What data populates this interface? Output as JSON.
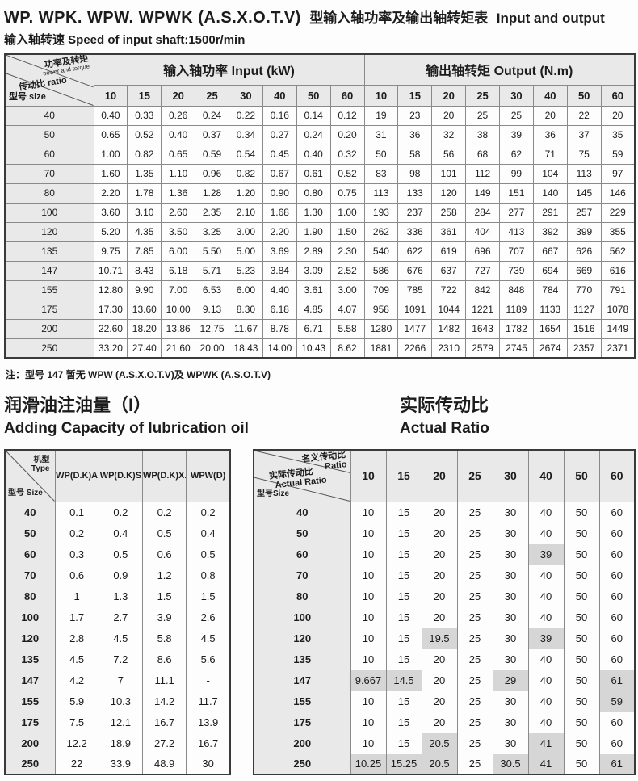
{
  "colors": {
    "header_bg": "#e9e9e9",
    "highlight": "#d6d6d6",
    "border_dark": "#3a3a3a",
    "text": "#1c1c1c"
  },
  "header": {
    "title_model": "WP. WPK. WPW. WPWK (A.S.X.O.T.V)",
    "title_cn": "型输入轴功率及输出轴转矩表",
    "title_en": "Input and output",
    "subtitle": "输入轴转速 Speed of input shaft:1500r/min",
    "note": "注：型号 147 暂无 WPW (A.S.X.O.T.V)及 WPWK (A.S.O.T.V)"
  },
  "main_table": {
    "corner": {
      "power_cn": "功率及转矩",
      "power_en": "power and torque",
      "ratio": "传动比 ratio",
      "size": "型号  size"
    },
    "input_header": "输入轴功率  Input (kW)",
    "output_header": "输出轴转矩  Output (N.m)",
    "ratios": [
      "10",
      "15",
      "20",
      "25",
      "30",
      "40",
      "50",
      "60"
    ],
    "rows": [
      {
        "size": "40",
        "input": [
          "0.40",
          "0.33",
          "0.26",
          "0.24",
          "0.22",
          "0.16",
          "0.14",
          "0.12"
        ],
        "output": [
          "19",
          "23",
          "20",
          "25",
          "25",
          "20",
          "22",
          "20"
        ]
      },
      {
        "size": "50",
        "input": [
          "0.65",
          "0.52",
          "0.40",
          "0.37",
          "0.34",
          "0.27",
          "0.24",
          "0.20"
        ],
        "output": [
          "31",
          "36",
          "32",
          "38",
          "39",
          "36",
          "37",
          "35"
        ]
      },
      {
        "size": "60",
        "input": [
          "1.00",
          "0.82",
          "0.65",
          "0.59",
          "0.54",
          "0.45",
          "0.40",
          "0.32"
        ],
        "output": [
          "50",
          "58",
          "56",
          "68",
          "62",
          "71",
          "75",
          "59"
        ]
      },
      {
        "size": "70",
        "input": [
          "1.60",
          "1.35",
          "1.10",
          "0.96",
          "0.82",
          "0.67",
          "0.61",
          "0.52"
        ],
        "output": [
          "83",
          "98",
          "101",
          "112",
          "99",
          "104",
          "113",
          "97"
        ]
      },
      {
        "size": "80",
        "input": [
          "2.20",
          "1.78",
          "1.36",
          "1.28",
          "1.20",
          "0.90",
          "0.80",
          "0.75"
        ],
        "output": [
          "113",
          "133",
          "120",
          "149",
          "151",
          "140",
          "145",
          "146"
        ]
      },
      {
        "size": "100",
        "input": [
          "3.60",
          "3.10",
          "2.60",
          "2.35",
          "2.10",
          "1.68",
          "1.30",
          "1.00"
        ],
        "output": [
          "193",
          "237",
          "258",
          "284",
          "277",
          "291",
          "257",
          "229"
        ]
      },
      {
        "size": "120",
        "input": [
          "5.20",
          "4.35",
          "3.50",
          "3.25",
          "3.00",
          "2.20",
          "1.90",
          "1.50"
        ],
        "output": [
          "262",
          "336",
          "361",
          "404",
          "413",
          "392",
          "399",
          "355"
        ]
      },
      {
        "size": "135",
        "input": [
          "9.75",
          "7.85",
          "6.00",
          "5.50",
          "5.00",
          "3.69",
          "2.89",
          "2.30"
        ],
        "output": [
          "540",
          "622",
          "619",
          "696",
          "707",
          "667",
          "626",
          "562"
        ]
      },
      {
        "size": "147",
        "input": [
          "10.71",
          "8.43",
          "6.18",
          "5.71",
          "5.23",
          "3.84",
          "3.09",
          "2.52"
        ],
        "output": [
          "586",
          "676",
          "637",
          "727",
          "739",
          "694",
          "669",
          "616"
        ]
      },
      {
        "size": "155",
        "input": [
          "12.80",
          "9.90",
          "7.00",
          "6.53",
          "6.00",
          "4.40",
          "3.61",
          "3.00"
        ],
        "output": [
          "709",
          "785",
          "722",
          "842",
          "848",
          "784",
          "770",
          "791"
        ]
      },
      {
        "size": "175",
        "input": [
          "17.30",
          "13.60",
          "10.00",
          "9.13",
          "8.30",
          "6.18",
          "4.85",
          "4.07"
        ],
        "output": [
          "958",
          "1091",
          "1044",
          "1221",
          "1189",
          "1133",
          "1127",
          "1078"
        ]
      },
      {
        "size": "200",
        "input": [
          "22.60",
          "18.20",
          "13.86",
          "12.75",
          "11.67",
          "8.78",
          "6.71",
          "5.58"
        ],
        "output": [
          "1280",
          "1477",
          "1482",
          "1643",
          "1782",
          "1654",
          "1516",
          "1449"
        ]
      },
      {
        "size": "250",
        "input": [
          "33.20",
          "27.40",
          "21.60",
          "20.00",
          "18.43",
          "14.00",
          "10.43",
          "8.62"
        ],
        "output": [
          "1881",
          "2266",
          "2310",
          "2579",
          "2745",
          "2674",
          "2357",
          "2371"
        ]
      }
    ]
  },
  "oil_section": {
    "title_cn": "润滑油注油量（I）",
    "title_en": "Adding Capacity of lubrication oil",
    "corner": {
      "type_cn": "机型",
      "type_en": "Type",
      "size": "型号 Size"
    },
    "columns": [
      "WP(D.K)A",
      "WP(D.K)S",
      "WP(D.K)X.O",
      "WPW(D)"
    ],
    "rows": [
      {
        "size": "40",
        "values": [
          "0.1",
          "0.2",
          "0.2",
          "0.2"
        ]
      },
      {
        "size": "50",
        "values": [
          "0.2",
          "0.4",
          "0.5",
          "0.4"
        ]
      },
      {
        "size": "60",
        "values": [
          "0.3",
          "0.5",
          "0.6",
          "0.5"
        ]
      },
      {
        "size": "70",
        "values": [
          "0.6",
          "0.9",
          "1.2",
          "0.8"
        ]
      },
      {
        "size": "80",
        "values": [
          "1",
          "1.3",
          "1.5",
          "1.5"
        ]
      },
      {
        "size": "100",
        "values": [
          "1.7",
          "2.7",
          "3.9",
          "2.6"
        ]
      },
      {
        "size": "120",
        "values": [
          "2.8",
          "4.5",
          "5.8",
          "4.5"
        ]
      },
      {
        "size": "135",
        "values": [
          "4.5",
          "7.2",
          "8.6",
          "5.6"
        ]
      },
      {
        "size": "147",
        "values": [
          "4.2",
          "7",
          "11.1",
          "-"
        ]
      },
      {
        "size": "155",
        "values": [
          "5.9",
          "10.3",
          "14.2",
          "11.7"
        ]
      },
      {
        "size": "175",
        "values": [
          "7.5",
          "12.1",
          "16.7",
          "13.9"
        ]
      },
      {
        "size": "200",
        "values": [
          "12.2",
          "18.9",
          "27.2",
          "16.7"
        ]
      },
      {
        "size": "250",
        "values": [
          "22",
          "33.9",
          "48.9",
          "30"
        ]
      }
    ]
  },
  "ratio_section": {
    "title_cn": "实际传动比",
    "title_en": "Actual Ratio",
    "corner": {
      "nominal_cn": "名义传动比",
      "nominal_en": "Ratio",
      "actual_cn": "实际传动比",
      "actual_en": "Actual Ratio",
      "size": "型号Size"
    },
    "ratios": [
      "10",
      "15",
      "20",
      "25",
      "30",
      "40",
      "50",
      "60"
    ],
    "rows": [
      {
        "size": "40",
        "values": [
          "10",
          "15",
          "20",
          "25",
          "30",
          "40",
          "50",
          "60"
        ],
        "hl": [
          0,
          0,
          0,
          0,
          0,
          0,
          0,
          0
        ]
      },
      {
        "size": "50",
        "values": [
          "10",
          "15",
          "20",
          "25",
          "30",
          "40",
          "50",
          "60"
        ],
        "hl": [
          0,
          0,
          0,
          0,
          0,
          0,
          0,
          0
        ]
      },
      {
        "size": "60",
        "values": [
          "10",
          "15",
          "20",
          "25",
          "30",
          "39",
          "50",
          "60"
        ],
        "hl": [
          0,
          0,
          0,
          0,
          0,
          1,
          0,
          0
        ]
      },
      {
        "size": "70",
        "values": [
          "10",
          "15",
          "20",
          "25",
          "30",
          "40",
          "50",
          "60"
        ],
        "hl": [
          0,
          0,
          0,
          0,
          0,
          0,
          0,
          0
        ]
      },
      {
        "size": "80",
        "values": [
          "10",
          "15",
          "20",
          "25",
          "30",
          "40",
          "50",
          "60"
        ],
        "hl": [
          0,
          0,
          0,
          0,
          0,
          0,
          0,
          0
        ]
      },
      {
        "size": "100",
        "values": [
          "10",
          "15",
          "20",
          "25",
          "30",
          "40",
          "50",
          "60"
        ],
        "hl": [
          0,
          0,
          0,
          0,
          0,
          0,
          0,
          0
        ]
      },
      {
        "size": "120",
        "values": [
          "10",
          "15",
          "19.5",
          "25",
          "30",
          "39",
          "50",
          "60"
        ],
        "hl": [
          0,
          0,
          1,
          0,
          0,
          1,
          0,
          0
        ]
      },
      {
        "size": "135",
        "values": [
          "10",
          "15",
          "20",
          "25",
          "30",
          "40",
          "50",
          "60"
        ],
        "hl": [
          0,
          0,
          0,
          0,
          0,
          0,
          0,
          0
        ]
      },
      {
        "size": "147",
        "values": [
          "9.667",
          "14.5",
          "20",
          "25",
          "29",
          "40",
          "50",
          "61"
        ],
        "hl": [
          1,
          1,
          0,
          0,
          1,
          0,
          0,
          1
        ]
      },
      {
        "size": "155",
        "values": [
          "10",
          "15",
          "20",
          "25",
          "30",
          "40",
          "50",
          "59"
        ],
        "hl": [
          0,
          0,
          0,
          0,
          0,
          0,
          0,
          1
        ]
      },
      {
        "size": "175",
        "values": [
          "10",
          "15",
          "20",
          "25",
          "30",
          "40",
          "50",
          "60"
        ],
        "hl": [
          0,
          0,
          0,
          0,
          0,
          0,
          0,
          0
        ]
      },
      {
        "size": "200",
        "values": [
          "10",
          "15",
          "20.5",
          "25",
          "30",
          "41",
          "50",
          "60"
        ],
        "hl": [
          0,
          0,
          1,
          0,
          0,
          1,
          0,
          0
        ]
      },
      {
        "size": "250",
        "values": [
          "10.25",
          "15.25",
          "20.5",
          "25",
          "30.5",
          "41",
          "50",
          "61"
        ],
        "hl": [
          1,
          1,
          1,
          0,
          1,
          1,
          0,
          1
        ]
      }
    ]
  }
}
